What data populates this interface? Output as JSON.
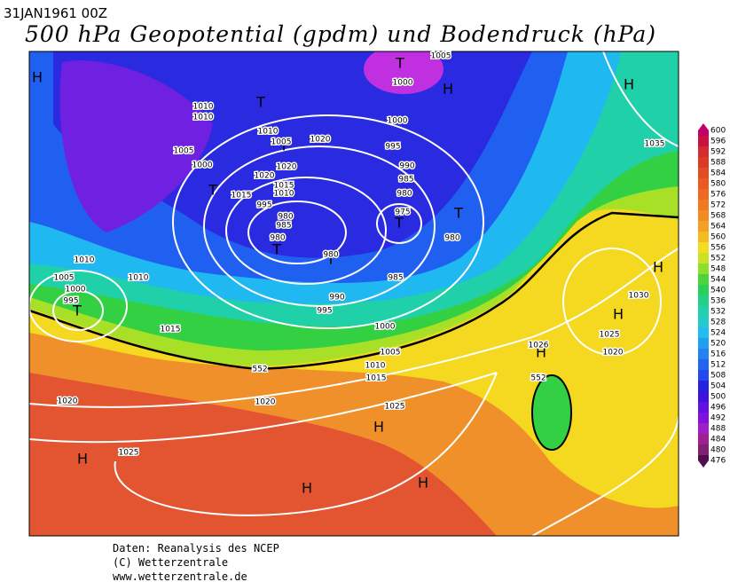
{
  "header": {
    "date": "31JAN1961 00Z",
    "title": "500 hPa Geopotential (gpdm) und Bodendruck (hPa)"
  },
  "colorbar": {
    "levels": [
      600,
      596,
      592,
      588,
      584,
      580,
      576,
      572,
      568,
      564,
      560,
      556,
      552,
      548,
      544,
      540,
      536,
      532,
      528,
      524,
      520,
      516,
      512,
      508,
      504,
      500,
      496,
      492,
      488,
      484,
      480,
      476
    ],
    "colors": [
      "#c0006a",
      "#cc1044",
      "#d42a30",
      "#dc3a24",
      "#e44c22",
      "#ea5a22",
      "#ee6a22",
      "#f07a22",
      "#f28c22",
      "#f4a022",
      "#f4bc22",
      "#f4dc22",
      "#c8e424",
      "#8ce02c",
      "#4cd43a",
      "#26d05a",
      "#22d088",
      "#22d0ac",
      "#22cccc",
      "#22bcf0",
      "#22a0f0",
      "#2282f0",
      "#2266f0",
      "#2248f0",
      "#2424e0",
      "#4012e0",
      "#6012e0",
      "#8012e0",
      "#a020c8",
      "#a02090",
      "#802070",
      "#501050"
    ]
  },
  "map_labels": [
    "H",
    "H",
    "H",
    "H",
    "H",
    "H",
    "H",
    "H",
    "H",
    "H",
    "T",
    "T",
    "T",
    "T",
    "T",
    "T",
    "T",
    "T",
    "T",
    1005,
    1000,
    1010,
    1010,
    1010,
    1005,
    1020,
    1000,
    995,
    990,
    985,
    980,
    975,
    980,
    1005,
    1000,
    1020,
    1020,
    1015,
    1010,
    1015,
    995,
    980,
    985,
    980,
    980,
    1035,
    1010,
    1005,
    1000,
    995,
    1010,
    985,
    990,
    995,
    1000,
    1015,
    1005,
    1010,
    1015,
    1025,
    1020,
    1020,
    1025,
    1030,
    1025,
    1020,
    1026,
    552,
    552
  ],
  "footer": {
    "line1": "Daten: Reanalysis des NCEP",
    "line2": "(C) Wetterzentrale",
    "line3": "www.wetterzentrale.de"
  }
}
